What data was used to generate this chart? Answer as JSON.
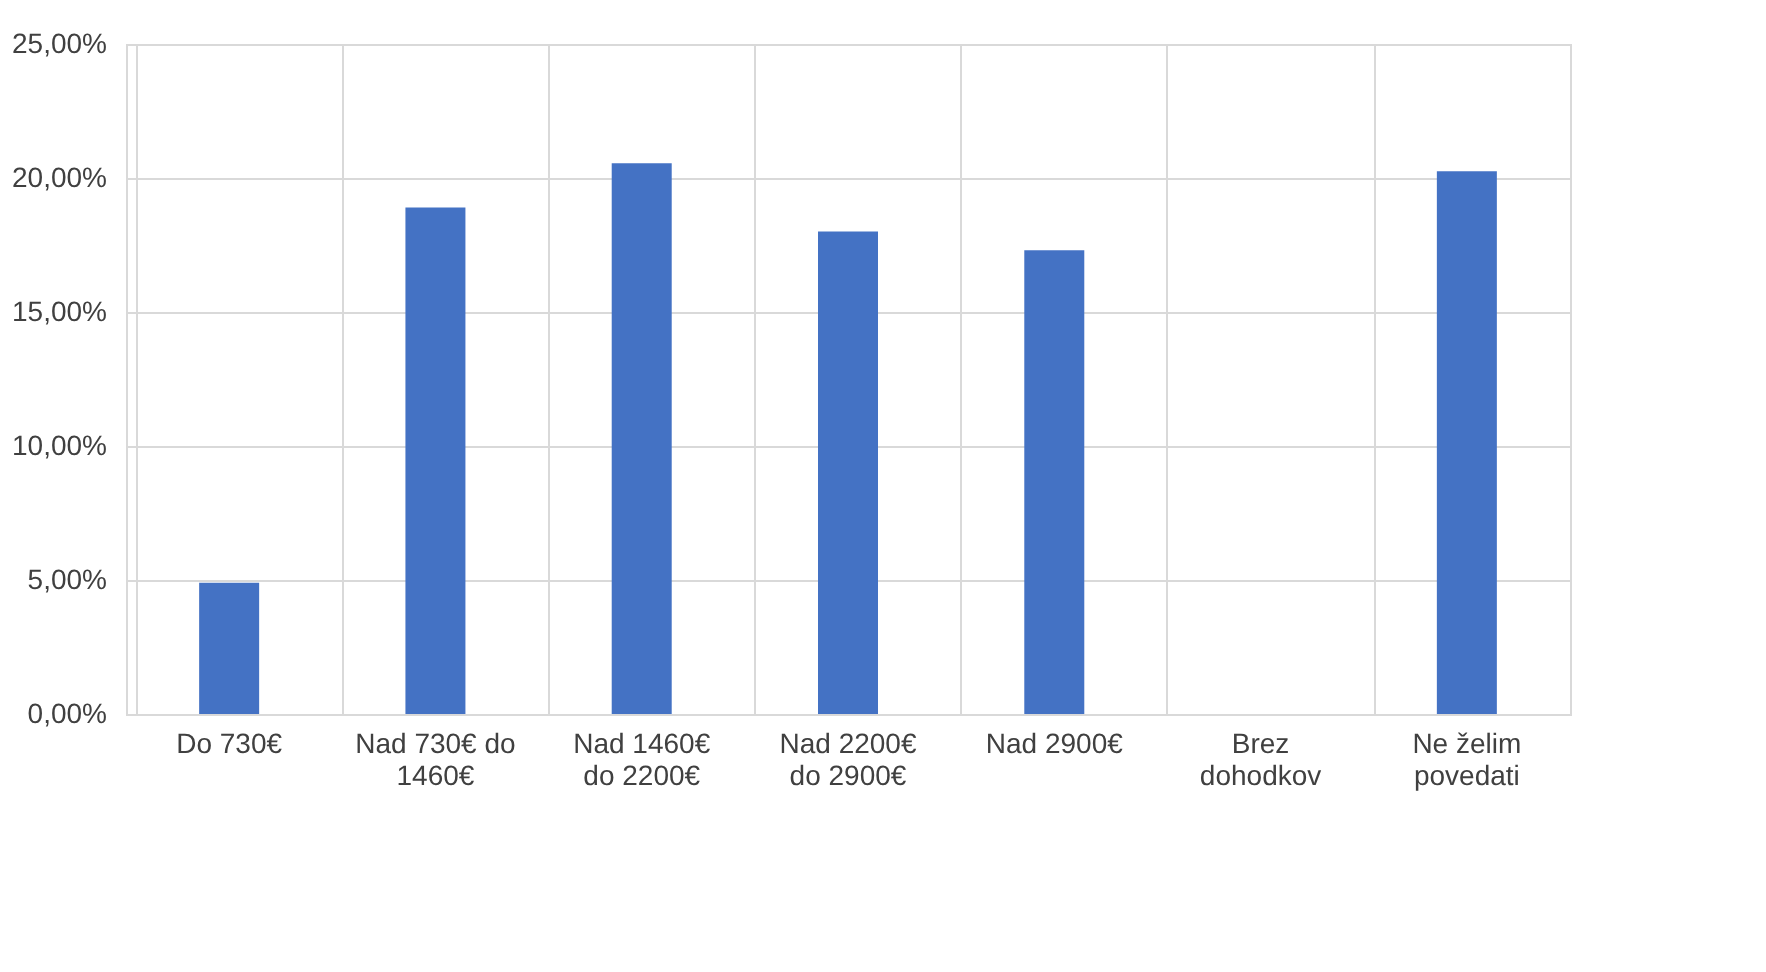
{
  "chart_data": {
    "type": "bar",
    "categories": [
      "Do 730€",
      "Nad 730€ do 1460€",
      "Nad 1460€ do 2200€",
      "Nad 2200€ do 2900€",
      "Nad 2900€",
      "Brez dohodkov",
      "Ne želim povedati"
    ],
    "values": [
      4.9,
      18.9,
      20.55,
      18.0,
      17.3,
      0,
      20.25
    ],
    "color": "#4472c4",
    "ylim": [
      0,
      25
    ],
    "yticks": [
      {
        "value": 0,
        "label": "0,00%"
      },
      {
        "value": 5,
        "label": "5,00%"
      },
      {
        "value": 10,
        "label": "10,00%"
      },
      {
        "value": 15,
        "label": "15,00%"
      },
      {
        "value": 20,
        "label": "20,00%"
      },
      {
        "value": 25,
        "label": "25,00%"
      }
    ],
    "grid": true
  }
}
